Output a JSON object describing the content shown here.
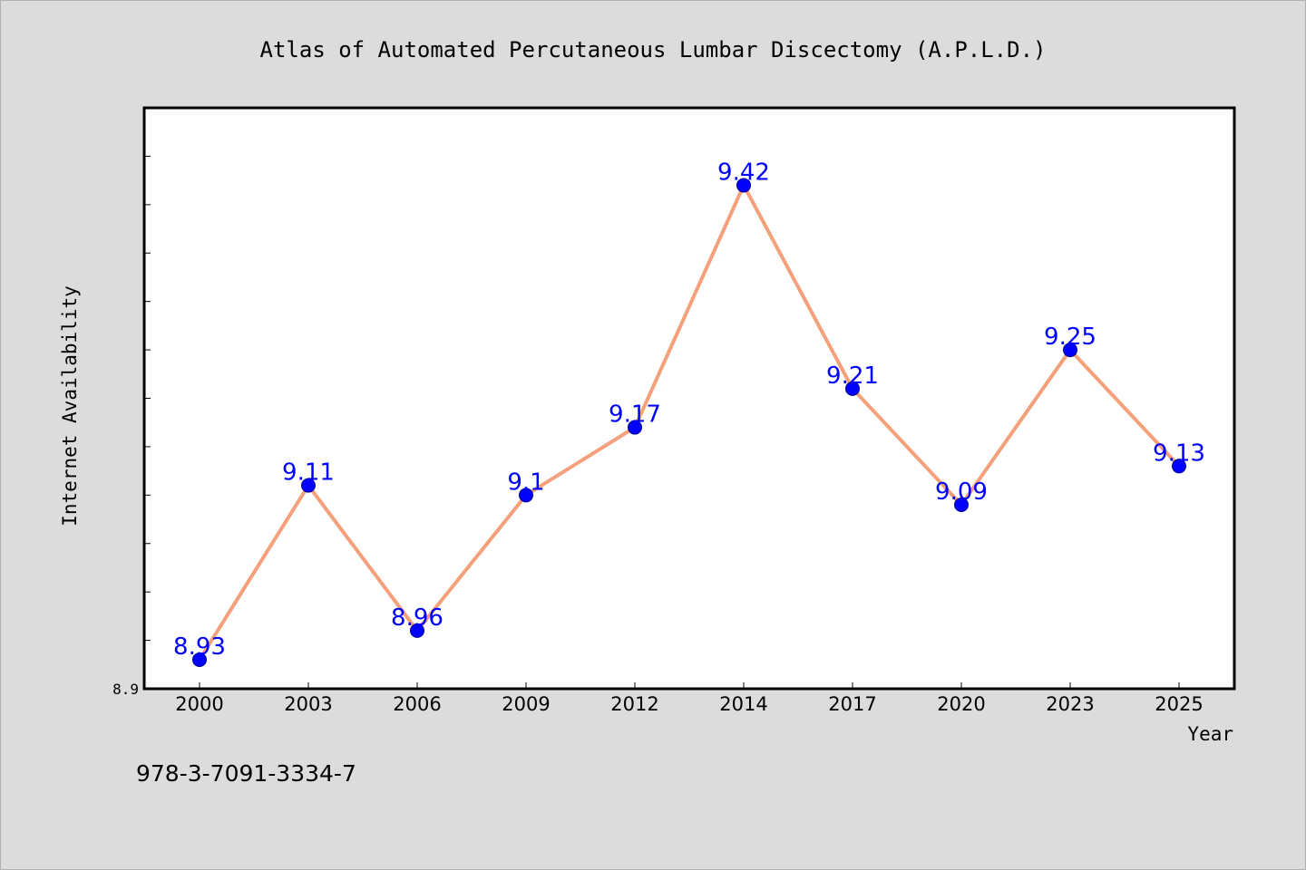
{
  "chart_data": {
    "type": "line",
    "title": "Atlas of Automated Percutaneous Lumbar Discectomy (A.P.L.D.)",
    "xlabel": "Year",
    "ylabel": "Internet Availability",
    "categories": [
      "2000",
      "2003",
      "2006",
      "2009",
      "2012",
      "2014",
      "2017",
      "2020",
      "2023",
      "2025"
    ],
    "series": [
      {
        "values": [
          8.93,
          9.11,
          8.96,
          9.1,
          9.17,
          9.42,
          9.21,
          9.09,
          9.25,
          9.13
        ],
        "labels": [
          "8.93",
          "9.11",
          "8.96",
          "9.1",
          "9.17",
          "9.42",
          "9.21",
          "9.09",
          "9.25",
          "9.13"
        ]
      }
    ],
    "ylim": [
      8.9,
      9.5
    ],
    "ytick_labels": [
      "8.9"
    ],
    "grid": false,
    "colors": {
      "line": "#f4a07a",
      "marker": "#0000ff",
      "marker_edge": "#00008b",
      "data_label": "#0000ff",
      "background": "#dcdcdc",
      "plot_background": "#ffffff"
    }
  },
  "footer": {
    "isbn": "978-3-7091-3334-7"
  }
}
